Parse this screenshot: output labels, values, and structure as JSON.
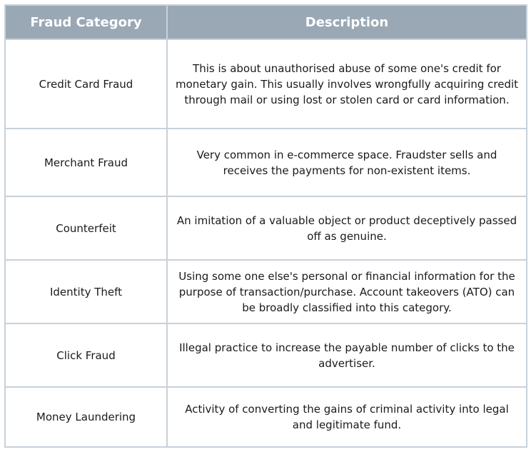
{
  "table": {
    "headers": [
      "Fraud Category",
      "Description"
    ],
    "rows": [
      {
        "category": "Credit Card Fraud",
        "description": "This is about unauthorised abuse of some one's credit for monetary gain. This usually involves wrongfully acquiring credit through mail or using lost or stolen card or card information."
      },
      {
        "category": "Merchant Fraud",
        "description": "Very common in e-commerce space. Fraudster sells and receives the payments for non-existent items."
      },
      {
        "category": "Counterfeit",
        "description": "An imitation of a valuable object or product deceptively passed off as genuine."
      },
      {
        "category": "Identity Theft",
        "description": "Using some one else's personal or financial information for the purpose of transaction/purchase. Account takeovers (ATO) can be broadly classified into this category."
      },
      {
        "category": "Click Fraud",
        "description": "Illegal practice to increase the payable number of clicks to the advertiser."
      },
      {
        "category": "Money Laundering",
        "description": "Activity of converting the gains of criminal activity into legal and legitimate fund."
      }
    ]
  },
  "colors": {
    "header_background": "#9aa8b5",
    "header_text": "#ffffff",
    "border": "#c7d1da",
    "body_text": "#1a1a1a"
  }
}
